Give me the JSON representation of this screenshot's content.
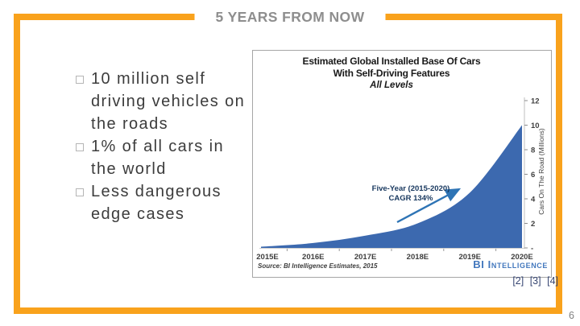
{
  "slide": {
    "title": "5 YEARS FROM NOW",
    "page_number": "6",
    "accent_color": "#F9A21C"
  },
  "bullets": [
    "10 million self\ndriving vehicles on\nthe roads",
    "1% of all cars in\nthe world",
    "Less dangerous\nedge cases"
  ],
  "citations": [
    "[2]",
    "[3]",
    "[4]"
  ],
  "chart_data": {
    "type": "area",
    "title": "Estimated Global Installed Base Of Cars\nWith Self-Driving Features",
    "subtitle": "All Levels",
    "categories": [
      "2015E",
      "2016E",
      "2017E",
      "2018E",
      "2019E",
      "2020E"
    ],
    "values": [
      0.1,
      0.4,
      1.0,
      2.0,
      4.5,
      10.0
    ],
    "ylabel": "Cars On The Road (Millions)",
    "ylim": [
      0,
      12
    ],
    "ytick_step": 2,
    "ytick_labels": [
      "-",
      "2",
      "4",
      "6",
      "8",
      "10",
      "12"
    ],
    "grid": false,
    "legend": "none",
    "annotation": {
      "line1": "Five-Year (2015-2020)",
      "line2": "CAGR 134%"
    },
    "source": "Source: BI Intelligence Estimates, 2015",
    "logo": "BI Intelligence",
    "fill_color": "#3C69AF",
    "annotation_color": "#17375E",
    "arrow_color": "#2E74B5"
  }
}
